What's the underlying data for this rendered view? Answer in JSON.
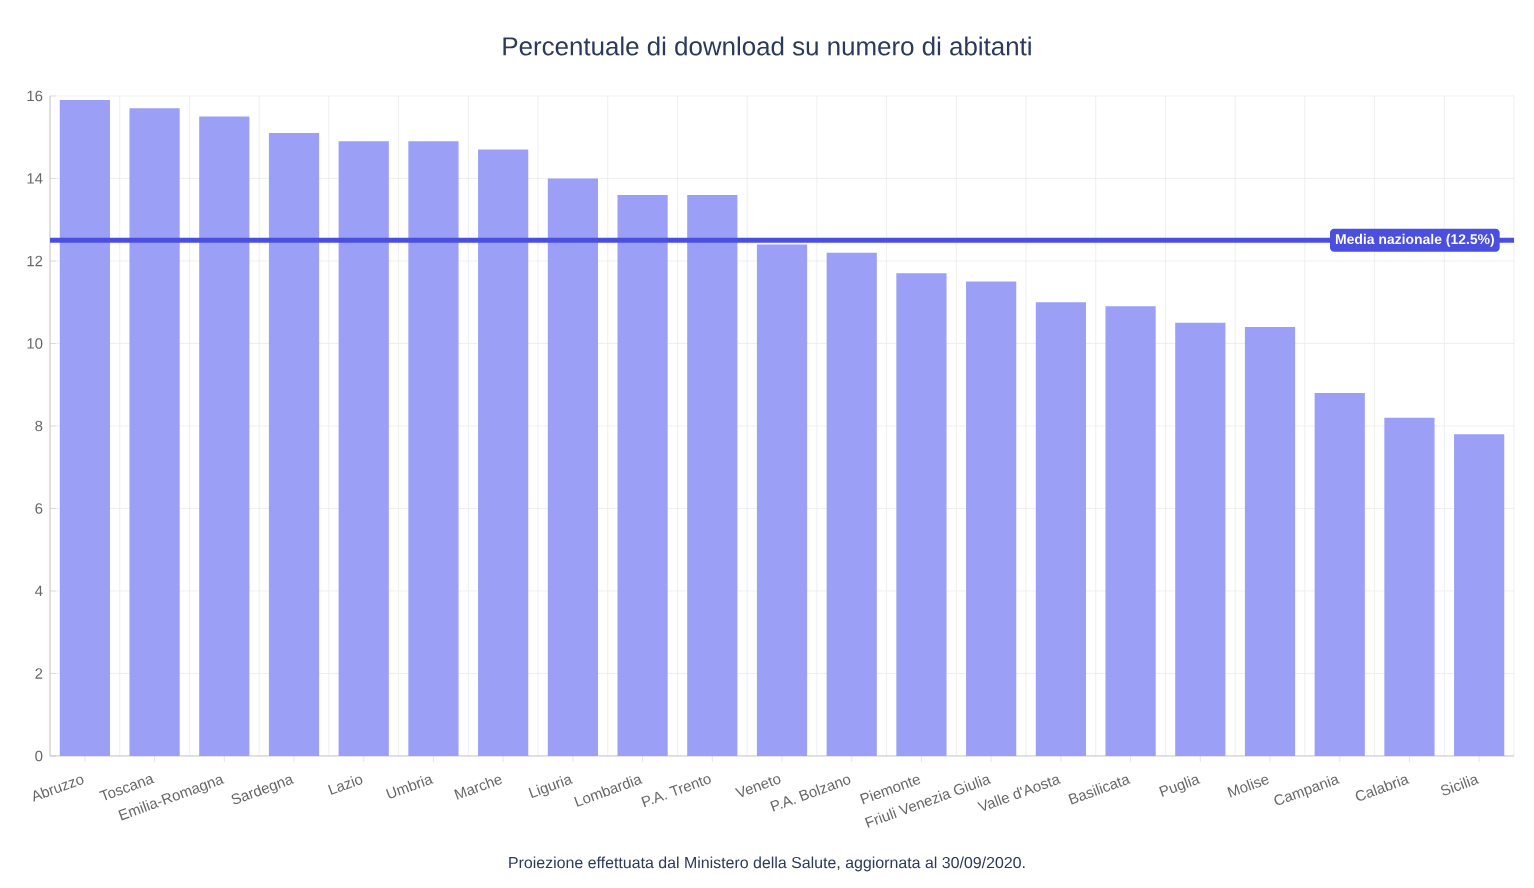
{
  "chart_data": {
    "type": "bar",
    "title": "Percentuale di download su numero di abitanti",
    "categories": [
      "Abruzzo",
      "Toscana",
      "Emilia-Romagna",
      "Sardegna",
      "Lazio",
      "Umbria",
      "Marche",
      "Liguria",
      "Lombardia",
      "P.A. Trento",
      "Veneto",
      "P.A. Bolzano",
      "Piemonte",
      "Friuli Venezia Giulia",
      "Valle d'Aosta",
      "Basilicata",
      "Puglia",
      "Molise",
      "Campania",
      "Calabria",
      "Sicilia"
    ],
    "values": [
      15.9,
      15.7,
      15.5,
      15.1,
      14.9,
      14.9,
      14.7,
      14.0,
      13.6,
      13.6,
      12.4,
      12.2,
      11.7,
      11.5,
      11.0,
      10.9,
      10.5,
      10.4,
      8.8,
      8.2,
      7.8
    ],
    "color": "#9b9ff5",
    "ylim": [
      0,
      16
    ],
    "yticks": [
      0,
      2,
      4,
      6,
      8,
      10,
      12,
      14,
      16
    ],
    "grid": true,
    "ref_lines": [
      {
        "axis": "y",
        "value": 12.5,
        "label": "Media nazionale (12.5%)",
        "color": "#4b4fe0"
      }
    ],
    "annotations": [
      "Proiezione effettuata dal Ministero della Salute, aggiornata al 30/09/2020."
    ]
  }
}
